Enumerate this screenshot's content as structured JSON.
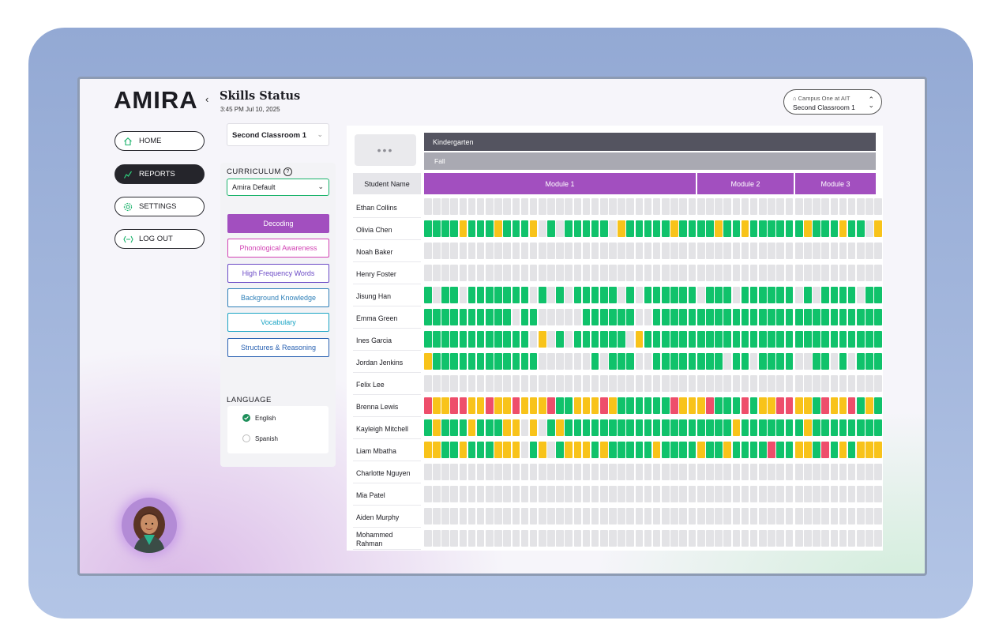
{
  "app": {
    "logo": "AMIRA",
    "collapse_icon": "chevron-left-icon"
  },
  "nav": [
    {
      "label": "HOME",
      "icon": "home-icon",
      "active": false
    },
    {
      "label": "REPORTS",
      "icon": "reports-icon",
      "active": true
    },
    {
      "label": "SETTINGS",
      "icon": "gear-icon",
      "active": false
    },
    {
      "label": "LOG OUT",
      "icon": "logout-icon",
      "active": false
    }
  ],
  "header": {
    "title": "Skills Status",
    "timestamp": "3:45 PM Jul 10, 2025"
  },
  "campus": {
    "campus_name": "Campus One at AIT",
    "classroom": "Second Classroom 1"
  },
  "filters": {
    "classroom_select": "Second Classroom 1",
    "curriculum_label": "CURRICULUM",
    "curriculum_value": "Amira Default",
    "skills": [
      {
        "label": "Decoding",
        "color": "#a24fbf",
        "active": true
      },
      {
        "label": "Phonological Awareness",
        "color": "#d243b4",
        "active": false
      },
      {
        "label": "High Frequency Words",
        "color": "#6a49c6",
        "active": false
      },
      {
        "label": "Background Knowledge",
        "color": "#2e7fb8",
        "active": false
      },
      {
        "label": "Vocabulary",
        "color": "#1aa4c4",
        "active": false
      },
      {
        "label": "Structures & Reasoning",
        "color": "#2a62b2",
        "active": false
      }
    ],
    "language_label": "LANGUAGE",
    "languages": [
      {
        "label": "English",
        "selected": true
      },
      {
        "label": "Spanish",
        "selected": false
      }
    ]
  },
  "grid": {
    "more_label": "•••",
    "grade": "Kindergarten",
    "season": "Fall",
    "student_col_header": "Student Name",
    "modules": [
      {
        "label": "Module 1",
        "cells": 31
      },
      {
        "label": "Module 2",
        "cells": 11
      },
      {
        "label": "Module 3",
        "cells": 10
      }
    ],
    "legend_colors": {
      "g": "#10c26b",
      "y": "#f8c31a",
      "r": "#ee4e6b",
      "n": "#e3e3e6"
    },
    "students": [
      {
        "name": "Ethan Collins",
        "status": "nnnnnnnnnnnnnnnnnnnnnnnnnnnnnnnnnnnnnnnnnnnnnnnnnnnn"
      },
      {
        "name": "Olivia Chen",
        "status": "ggggygggygggyngngggggnygggggyggggyggyggggggygggyggny"
      },
      {
        "name": "Noah Baker",
        "status": "nnnnnnnnnnnnnnnnnnnnnnnnnnnnnnnnnnnnnnnnnnnnnnnnnnnn"
      },
      {
        "name": "Henry Foster",
        "status": "nnnnnnnnnnnnnnnnnnnnnnnnnnnnnnnnnnnnnnnnnnnnnnnnnnnn"
      },
      {
        "name": "Jisung Han",
        "status": "gnggngggggggngngngggggngnggggggngggnggggggngnggggngg"
      },
      {
        "name": "Emma Green",
        "status": "ggggggggggnggnnnnnggggggnnggggggggggggggggggggggggggg"
      },
      {
        "name": "Ines Garcia",
        "status": "ggggggggggggnyngnggggggnygggggggggggggggggggggggggggy"
      },
      {
        "name": "Jordan Jenkins",
        "status": "yggggggggggggnnnnnngngggnnggggggggnggnggggnnggngnggg"
      },
      {
        "name": "Felix Lee",
        "status": "nnnnnnnnnnnnnnnnnnnnnnnnnnnnnnnnnnnnnnnnnnnnnnnnnnnn"
      },
      {
        "name": "Brenna Lewis",
        "status": "ryyrryyryyryyyrggyyyryggggggryyyrgggrgyyrryygryyrgyg"
      },
      {
        "name": "Kayleigh Mitchell",
        "status": "gygggygggyynyngygggggggggggggggggggygggggggygggggggg"
      },
      {
        "name": "Liam Mbatha",
        "status": "yyggygggyyyngyngyyygygggggyggggyggyggggrggyygrgygyyy"
      },
      {
        "name": "Charlotte Nguyen",
        "status": "nnnnnnnnnnnnnnnnnnnnnnnnnnnnnnnnnnnnnnnnnnnnnnnnnnnn"
      },
      {
        "name": "Mia Patel",
        "status": "nnnnnnnnnnnnnnnnnnnnnnnnnnnnnnnnnnnnnnnnnnnnnnnnnnnn"
      },
      {
        "name": "Aiden Murphy",
        "status": "nnnnnnnnnnnnnnnnnnnnnnnnnnnnnnnnnnnnnnnnnnnnnnnnnnnn"
      },
      {
        "name": "Mohammed\nRahman",
        "status": "nnnnnnnnnnnnnnnnnnnnnnnnnnnnnnnnnnnnnnnnnnnnnnnnnnnn"
      }
    ]
  }
}
